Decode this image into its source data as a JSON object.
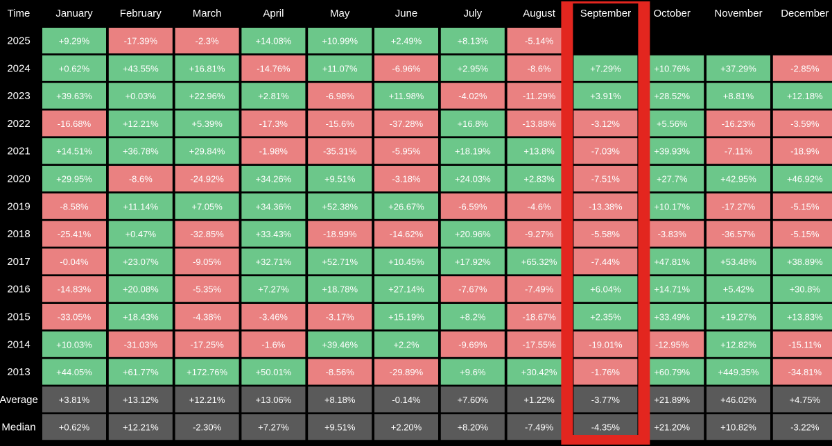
{
  "chart_data": {
    "type": "table",
    "corner_label": "Time",
    "columns": [
      "January",
      "February",
      "March",
      "April",
      "May",
      "June",
      "July",
      "August",
      "September",
      "October",
      "November",
      "December"
    ],
    "highlight_column": "September",
    "rows": [
      {
        "label": "2025",
        "kind": "year",
        "values": [
          "+9.29%",
          "-17.39%",
          "-2.3%",
          "+14.08%",
          "+10.99%",
          "+2.49%",
          "+8.13%",
          "-5.14%",
          "",
          "",
          "",
          ""
        ]
      },
      {
        "label": "2024",
        "kind": "year",
        "values": [
          "+0.62%",
          "+43.55%",
          "+16.81%",
          "-14.76%",
          "+11.07%",
          "-6.96%",
          "+2.95%",
          "-8.6%",
          "+7.29%",
          "+10.76%",
          "+37.29%",
          "-2.85%"
        ]
      },
      {
        "label": "2023",
        "kind": "year",
        "values": [
          "+39.63%",
          "+0.03%",
          "+22.96%",
          "+2.81%",
          "-6.98%",
          "+11.98%",
          "-4.02%",
          "-11.29%",
          "+3.91%",
          "+28.52%",
          "+8.81%",
          "+12.18%"
        ]
      },
      {
        "label": "2022",
        "kind": "year",
        "values": [
          "-16.68%",
          "+12.21%",
          "+5.39%",
          "-17.3%",
          "-15.6%",
          "-37.28%",
          "+16.8%",
          "-13.88%",
          "-3.12%",
          "+5.56%",
          "-16.23%",
          "-3.59%"
        ]
      },
      {
        "label": "2021",
        "kind": "year",
        "values": [
          "+14.51%",
          "+36.78%",
          "+29.84%",
          "-1.98%",
          "-35.31%",
          "-5.95%",
          "+18.19%",
          "+13.8%",
          "-7.03%",
          "+39.93%",
          "-7.11%",
          "-18.9%"
        ]
      },
      {
        "label": "2020",
        "kind": "year",
        "values": [
          "+29.95%",
          "-8.6%",
          "-24.92%",
          "+34.26%",
          "+9.51%",
          "-3.18%",
          "+24.03%",
          "+2.83%",
          "-7.51%",
          "+27.7%",
          "+42.95%",
          "+46.92%"
        ]
      },
      {
        "label": "2019",
        "kind": "year",
        "values": [
          "-8.58%",
          "+11.14%",
          "+7.05%",
          "+34.36%",
          "+52.38%",
          "+26.67%",
          "-6.59%",
          "-4.6%",
          "-13.38%",
          "+10.17%",
          "-17.27%",
          "-5.15%"
        ]
      },
      {
        "label": "2018",
        "kind": "year",
        "values": [
          "-25.41%",
          "+0.47%",
          "-32.85%",
          "+33.43%",
          "-18.99%",
          "-14.62%",
          "+20.96%",
          "-9.27%",
          "-5.58%",
          "-3.83%",
          "-36.57%",
          "-5.15%"
        ]
      },
      {
        "label": "2017",
        "kind": "year",
        "values": [
          "-0.04%",
          "+23.07%",
          "-9.05%",
          "+32.71%",
          "+52.71%",
          "+10.45%",
          "+17.92%",
          "+65.32%",
          "-7.44%",
          "+47.81%",
          "+53.48%",
          "+38.89%"
        ]
      },
      {
        "label": "2016",
        "kind": "year",
        "values": [
          "-14.83%",
          "+20.08%",
          "-5.35%",
          "+7.27%",
          "+18.78%",
          "+27.14%",
          "-7.67%",
          "-7.49%",
          "+6.04%",
          "+14.71%",
          "+5.42%",
          "+30.8%"
        ]
      },
      {
        "label": "2015",
        "kind": "year",
        "values": [
          "-33.05%",
          "+18.43%",
          "-4.38%",
          "-3.46%",
          "-3.17%",
          "+15.19%",
          "+8.2%",
          "-18.67%",
          "+2.35%",
          "+33.49%",
          "+19.27%",
          "+13.83%"
        ]
      },
      {
        "label": "2014",
        "kind": "year",
        "values": [
          "+10.03%",
          "-31.03%",
          "-17.25%",
          "-1.6%",
          "+39.46%",
          "+2.2%",
          "-9.69%",
          "-17.55%",
          "-19.01%",
          "-12.95%",
          "+12.82%",
          "-15.11%"
        ]
      },
      {
        "label": "2013",
        "kind": "year",
        "values": [
          "+44.05%",
          "+61.77%",
          "+172.76%",
          "+50.01%",
          "-8.56%",
          "-29.89%",
          "+9.6%",
          "+30.42%",
          "-1.76%",
          "+60.79%",
          "+449.35%",
          "-34.81%"
        ]
      },
      {
        "label": "Average",
        "kind": "summary",
        "values": [
          "+3.81%",
          "+13.12%",
          "+12.21%",
          "+13.06%",
          "+8.18%",
          "-0.14%",
          "+7.60%",
          "+1.22%",
          "-3.77%",
          "+21.89%",
          "+46.02%",
          "+4.75%"
        ]
      },
      {
        "label": "Median",
        "kind": "summary",
        "values": [
          "+0.62%",
          "+12.21%",
          "-2.30%",
          "+7.27%",
          "+9.51%",
          "+2.20%",
          "+8.20%",
          "-7.49%",
          "-4.35%",
          "+21.20%",
          "+10.82%",
          "-3.22%"
        ]
      }
    ],
    "colors": {
      "background": "#000000",
      "positive": "#6cc78a",
      "negative": "#ea8181",
      "summary": "#5a5a5a",
      "text": "#ffffff",
      "highlight_border": "#e3261f"
    }
  }
}
